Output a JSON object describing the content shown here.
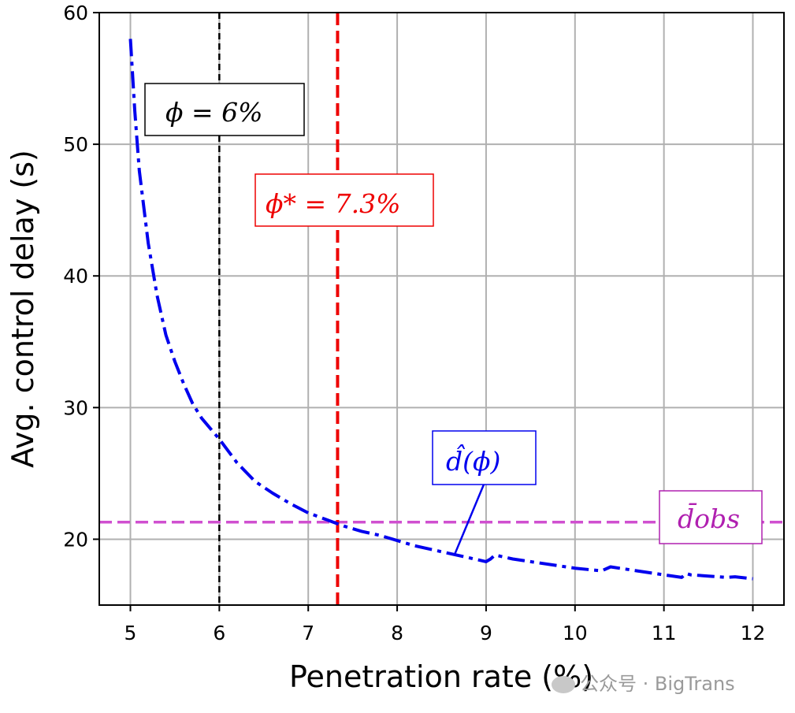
{
  "chart_data": {
    "type": "line",
    "xlabel": "Penetration rate (%)",
    "ylabel": "Avg. control delay (s)",
    "xlim": [
      4.65,
      12.35
    ],
    "ylim": [
      15,
      60
    ],
    "xticks": [
      5,
      6,
      7,
      8,
      9,
      10,
      11,
      12
    ],
    "yticks": [
      20,
      30,
      40,
      50,
      60
    ],
    "grid": true,
    "series": [
      {
        "name": "d̂(ϕ)",
        "color": "#0000ee",
        "style": "dashdot",
        "x": [
          5.0,
          5.05,
          5.1,
          5.2,
          5.3,
          5.4,
          5.5,
          5.6,
          5.7,
          5.8,
          5.9,
          6.0,
          6.2,
          6.4,
          6.6,
          6.8,
          7.0,
          7.2,
          7.4,
          7.6,
          7.8,
          8.0,
          8.2,
          8.4,
          8.6,
          8.8,
          9.0,
          9.05,
          9.1,
          9.3,
          9.5,
          9.8,
          10.0,
          10.3,
          10.4,
          10.7,
          11.0,
          11.2,
          11.25,
          11.3,
          11.5,
          11.7,
          11.8,
          12.0
        ],
        "y": [
          58.0,
          52.5,
          48.0,
          42.5,
          38.5,
          35.5,
          33.5,
          31.8,
          30.3,
          29.2,
          28.4,
          27.6,
          25.8,
          24.4,
          23.5,
          22.7,
          22.0,
          21.5,
          21.0,
          20.6,
          20.3,
          19.9,
          19.5,
          19.2,
          18.9,
          18.6,
          18.3,
          18.5,
          18.8,
          18.5,
          18.3,
          18.0,
          17.8,
          17.6,
          17.9,
          17.6,
          17.3,
          17.1,
          17.4,
          17.3,
          17.2,
          17.1,
          17.15,
          17.0
        ]
      }
    ],
    "hlines": [
      {
        "name": "d̄obs",
        "y": 21.3,
        "color": "#d050d0",
        "style": "dashed"
      }
    ],
    "vlines": [
      {
        "x": 6.0,
        "color": "#000000",
        "style": "dashed"
      },
      {
        "x": 7.33,
        "color": "#ee0000",
        "style": "dashed"
      }
    ],
    "annotations": [
      {
        "text": "ϕ = 6%",
        "color": "#000000"
      },
      {
        "text": "ϕ* = 7.3%",
        "color": "#ee0000"
      },
      {
        "text": "d̂(ϕ)",
        "color": "#0000ee",
        "arrow_to": [
          8.65,
          18.9
        ]
      },
      {
        "text": "d̄obs",
        "color": "#b020b0"
      }
    ]
  },
  "watermark": {
    "text": "公众号 · BigTrans",
    "icon": "wechat-icon"
  }
}
